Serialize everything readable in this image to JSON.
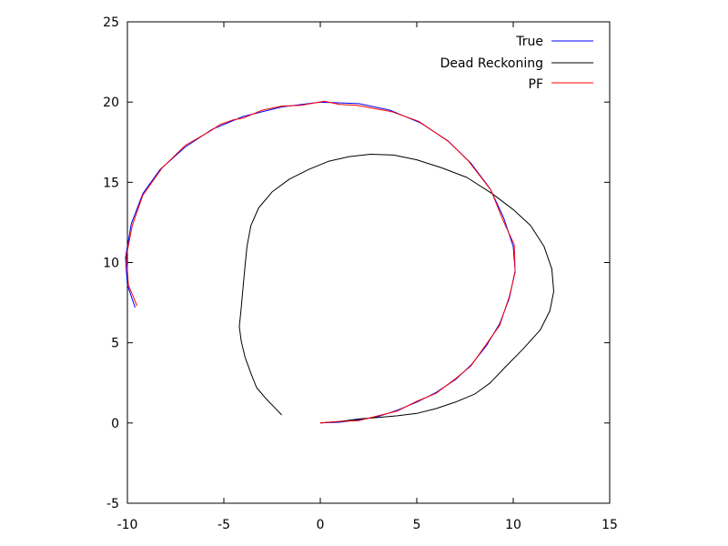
{
  "chart_data": {
    "type": "line",
    "title": "",
    "xlabel": "",
    "ylabel": "",
    "xlim": [
      -10,
      15
    ],
    "ylim": [
      -5,
      25
    ],
    "xticks": [
      -10,
      -5,
      0,
      5,
      10,
      15
    ],
    "yticks": [
      -5,
      0,
      5,
      10,
      15,
      20,
      25
    ],
    "x_tick_labels": [
      "-10",
      "-5",
      "0",
      "5",
      "10",
      "15"
    ],
    "y_tick_labels": [
      "-5",
      "0",
      "5",
      "10",
      "15",
      "20",
      "25"
    ],
    "grid": false,
    "legend_position": "top-right",
    "series": [
      {
        "name": "True",
        "color": "#0000ff",
        "points": [
          [
            0,
            0
          ],
          [
            1,
            0.05
          ],
          [
            2,
            0.2
          ],
          [
            3,
            0.4
          ],
          [
            4,
            0.8
          ],
          [
            5,
            1.3
          ],
          [
            6,
            1.9
          ],
          [
            7,
            2.7
          ],
          [
            7.8,
            3.6
          ],
          [
            8.6,
            4.8
          ],
          [
            9.3,
            6.2
          ],
          [
            9.8,
            7.8
          ],
          [
            10.1,
            9.5
          ],
          [
            10,
            11
          ],
          [
            9.5,
            12.8
          ],
          [
            8.8,
            14.6
          ],
          [
            7.8,
            16.2
          ],
          [
            6.6,
            17.6
          ],
          [
            5.2,
            18.7
          ],
          [
            3.6,
            19.5
          ],
          [
            2,
            19.9
          ],
          [
            0,
            20
          ],
          [
            -2,
            19.7
          ],
          [
            -4,
            19.1
          ],
          [
            -5.6,
            18.3
          ],
          [
            -7,
            17.2
          ],
          [
            -8.3,
            15.8
          ],
          [
            -9.2,
            14.3
          ],
          [
            -9.8,
            12.4
          ],
          [
            -10.1,
            10.3
          ],
          [
            -10,
            8.6
          ],
          [
            -9.6,
            7.2
          ]
        ]
      },
      {
        "name": "Dead Reckoning",
        "color": "#000000",
        "points": [
          [
            0,
            0
          ],
          [
            1,
            0.1
          ],
          [
            2,
            0.25
          ],
          [
            3,
            0.35
          ],
          [
            4,
            0.45
          ],
          [
            5,
            0.6
          ],
          [
            6,
            0.9
          ],
          [
            7,
            1.3
          ],
          [
            8,
            1.8
          ],
          [
            8.8,
            2.5
          ],
          [
            9.6,
            3.5
          ],
          [
            10.5,
            4.6
          ],
          [
            11.4,
            5.8
          ],
          [
            11.9,
            7
          ],
          [
            12.1,
            8.2
          ],
          [
            12,
            9.6
          ],
          [
            11.6,
            11
          ],
          [
            10.9,
            12.3
          ],
          [
            10,
            13.3
          ],
          [
            8.9,
            14.3
          ],
          [
            7.6,
            15.3
          ],
          [
            6.3,
            15.9
          ],
          [
            5,
            16.4
          ],
          [
            3.8,
            16.7
          ],
          [
            2.6,
            16.75
          ],
          [
            1.5,
            16.6
          ],
          [
            0.4,
            16.3
          ],
          [
            -0.6,
            15.8
          ],
          [
            -1.6,
            15.2
          ],
          [
            -2.5,
            14.4
          ],
          [
            -3.2,
            13.4
          ],
          [
            -3.6,
            12.3
          ],
          [
            -3.8,
            11
          ],
          [
            -3.9,
            9.8
          ],
          [
            -4,
            8.5
          ],
          [
            -4.1,
            7.2
          ],
          [
            -4.2,
            6
          ],
          [
            -4.1,
            5.1
          ],
          [
            -3.9,
            4.1
          ],
          [
            -3.6,
            3.1
          ],
          [
            -3.3,
            2.2
          ],
          [
            -2.8,
            1.5
          ],
          [
            -2.4,
            1
          ],
          [
            -2,
            0.5
          ]
        ]
      },
      {
        "name": "PF",
        "color": "#ff0000",
        "points": [
          [
            0,
            0
          ],
          [
            1,
            0.1
          ],
          [
            2,
            0.15
          ],
          [
            3,
            0.45
          ],
          [
            4,
            0.75
          ],
          [
            5,
            1.35
          ],
          [
            6,
            1.85
          ],
          [
            7,
            2.75
          ],
          [
            7.8,
            3.55
          ],
          [
            8.6,
            4.9
          ],
          [
            9.3,
            6.1
          ],
          [
            9.8,
            7.9
          ],
          [
            10.1,
            9.4
          ],
          [
            10.05,
            11.1
          ],
          [
            9.45,
            12.7
          ],
          [
            8.85,
            14.5
          ],
          [
            7.7,
            16.3
          ],
          [
            6.7,
            17.5
          ],
          [
            5.1,
            18.8
          ],
          [
            3.7,
            19.4
          ],
          [
            1.9,
            19.8
          ],
          [
            1,
            19.85
          ],
          [
            0.2,
            20.05
          ],
          [
            -1,
            19.8
          ],
          [
            -2,
            19.75
          ],
          [
            -3,
            19.5
          ],
          [
            -4,
            19
          ],
          [
            -4.5,
            18.9
          ],
          [
            -5.2,
            18.6
          ],
          [
            -5.7,
            18.2
          ],
          [
            -7,
            17.3
          ],
          [
            -8.2,
            15.9
          ],
          [
            -9.2,
            14.2
          ],
          [
            -9.75,
            12.3
          ],
          [
            -10.05,
            10.4
          ],
          [
            -9.95,
            8.6
          ],
          [
            -9.5,
            7.3
          ]
        ]
      }
    ]
  }
}
